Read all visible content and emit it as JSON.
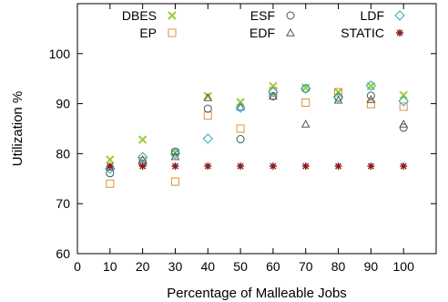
{
  "chart_data": {
    "type": "scatter",
    "xlabel": "Percentage of Malleable Jobs",
    "ylabel": "Utilization %",
    "xlim": [
      0,
      110
    ],
    "ylim": [
      60,
      110
    ],
    "xticks": [
      0,
      10,
      20,
      30,
      40,
      50,
      60,
      70,
      80,
      90,
      100
    ],
    "yticks": [
      60,
      70,
      80,
      90,
      100
    ],
    "x": [
      10,
      20,
      30,
      40,
      50,
      60,
      70,
      80,
      90,
      100
    ],
    "legend_position": "top",
    "series": [
      {
        "name": "DBES",
        "marker": "x",
        "color": "#9ACD32",
        "values": [
          78.8,
          82.8,
          80.2,
          91.5,
          90.3,
          93.5,
          93.2,
          92.3,
          93.5,
          91.7
        ]
      },
      {
        "name": "EP",
        "marker": "square",
        "color": "#E0913A",
        "values": [
          74.0,
          78.5,
          74.4,
          87.6,
          85.0,
          92.5,
          90.2,
          92.3,
          89.9,
          89.4
        ]
      },
      {
        "name": "ESF",
        "marker": "circle",
        "color": "#3D5A5A",
        "values": [
          76.1,
          78.0,
          80.4,
          89.0,
          82.9,
          91.5,
          93.0,
          91.2,
          91.6,
          85.2
        ]
      },
      {
        "name": "EDF",
        "marker": "triangle",
        "color": "#555555",
        "values": [
          77.3,
          78.8,
          79.4,
          91.2,
          89.3,
          91.5,
          85.9,
          90.7,
          90.8,
          85.9
        ]
      },
      {
        "name": "LDF",
        "marker": "diamond",
        "color": "#2BA8B8",
        "values": [
          77.0,
          79.3,
          80.0,
          83.0,
          89.2,
          92.3,
          93.0,
          91.3,
          93.6,
          90.5
        ]
      },
      {
        "name": "STATIC",
        "marker": "star",
        "color": "#8B1A1A",
        "values": [
          77.5,
          77.5,
          77.5,
          77.5,
          77.5,
          77.5,
          77.5,
          77.5,
          77.5,
          77.5
        ]
      }
    ]
  }
}
